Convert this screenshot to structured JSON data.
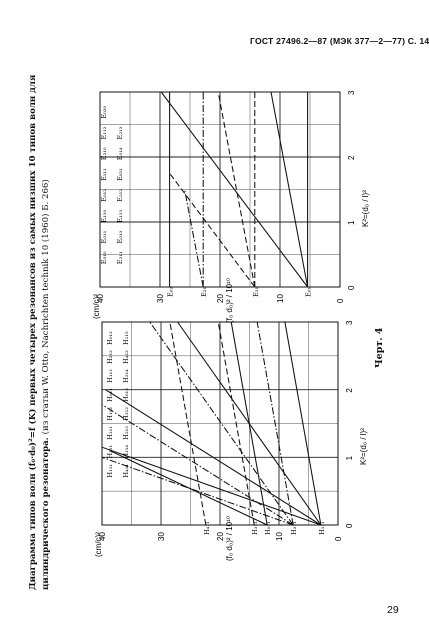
{
  "header": "ГОСТ 27496.2—87 (МЭК 377—2—77) С. 14",
  "page_number": "29",
  "caption": {
    "line1": "Диаграмма типов волн (f₀·d₀)²=f (K) первых четырех резонансов из самых низших 10 типов волн для",
    "line2": "цилиндрического резонатора.",
    "line2_note": "(из статьи W. Otto, Nachrichten technik 10 (1960) Б. 266)"
  },
  "figure_label": "Черт. 4",
  "axes": {
    "y_title": "(cm/c)²",
    "y_ticks": [
      "40",
      "30",
      "20",
      "10",
      "0"
    ],
    "y_quantity": "(f₀ d₀)² / 10¹⁰",
    "x_ticks": [
      "0",
      "1",
      "2",
      "3"
    ],
    "x_quantity": "K²=(d₀ / l)²"
  },
  "chart_data": [
    {
      "type": "line",
      "title": "",
      "xlabel": "K²=(d₀/l)²",
      "ylabel": "(f₀ d₀)²/10¹⁰ (cm/c)²",
      "xlim": [
        0,
        3
      ],
      "ylim": [
        0,
        40
      ],
      "series": [
        {
          "name": "H111",
          "style": "solid",
          "x": [
            0,
            3
          ],
          "y": [
            2.9,
            9.0
          ]
        },
        {
          "name": "H211",
          "style": "dashdot",
          "x": [
            0,
            3
          ],
          "y": [
            7.6,
            13.7
          ]
        },
        {
          "name": "H112",
          "style": "solid",
          "x": [
            0,
            3
          ],
          "y": [
            2.9,
            27.2
          ]
        },
        {
          "name": "H212",
          "style": "dashdot",
          "x": [
            0,
            3
          ],
          "y": [
            7.6,
            31.9
          ]
        },
        {
          "name": "H311",
          "style": "dashed",
          "x": [
            0,
            3
          ],
          "y": [
            14.2,
            20.3
          ]
        },
        {
          "name": "H011",
          "style": "solid",
          "x": [
            0,
            3
          ],
          "y": [
            12.0,
            18.1
          ]
        },
        {
          "name": "H113",
          "style": "solid",
          "x": [
            0,
            2.0
          ],
          "y": [
            2.9,
            39.4
          ]
        },
        {
          "name": "H012",
          "style": "solid",
          "x": [
            0,
            1.1
          ],
          "y": [
            12.0,
            38.7
          ]
        },
        {
          "name": "H213",
          "style": "dashdot",
          "x": [
            0,
            1.78
          ],
          "y": [
            7.6,
            40.0
          ]
        },
        {
          "name": "H411",
          "style": "dashed",
          "x": [
            0,
            3
          ],
          "y": [
            22.4,
            28.5
          ]
        },
        {
          "name": "H114",
          "style": "solid",
          "x": [
            0,
            1.15
          ],
          "y": [
            2.9,
            40.0
          ]
        },
        {
          "name": "H214",
          "style": "dashdot",
          "x": [
            0,
            1.0
          ],
          "y": [
            7.6,
            40.0
          ]
        },
        {
          "name": "E012",
          "style": "solid",
          "x": [
            0,
            3
          ],
          "y": [
            5.4,
            29.8
          ]
        },
        {
          "name": "E011",
          "style": "solid",
          "x": [
            0,
            3
          ],
          "y": [
            5.4,
            11.5
          ]
        },
        {
          "name": "E010",
          "style": "solid",
          "x": [
            0,
            3
          ],
          "y": [
            5.4,
            5.4
          ]
        },
        {
          "name": "E110",
          "style": "dashed",
          "x": [
            0,
            3
          ],
          "y": [
            14.2,
            14.2
          ]
        },
        {
          "name": "E111",
          "style": "dashed",
          "x": [
            0,
            3
          ],
          "y": [
            14.2,
            20.3
          ]
        },
        {
          "name": "E210",
          "style": "dashdot",
          "x": [
            0,
            3
          ],
          "y": [
            22.8,
            22.8
          ]
        },
        {
          "name": "E112",
          "style": "dashed",
          "x": [
            0,
            1.75
          ],
          "y": [
            14.2,
            28.4
          ]
        },
        {
          "name": "E211",
          "style": "dashdot",
          "x": [
            0,
            1.5
          ],
          "y": [
            22.8,
            25.9
          ]
        },
        {
          "name": "E020",
          "style": "solid",
          "x": [
            0,
            3
          ],
          "y": [
            28.4,
            28.4
          ]
        }
      ],
      "left_panel_labels": [
        "H₁₁₁",
        "H₂₁₁",
        "H₃₁₁",
        "H₁₁₂",
        "H₀₁₁",
        "H₁₁₃",
        "H₂₁₂",
        "H₀₁₂",
        "H₄₁₁",
        "H₁₁₄",
        "H₂₁₃",
        "H₃₁₂",
        "H₀₁₃",
        "H₂₁₄",
        "H₄₁₂",
        "H₁₁₅"
      ],
      "right_panel_labels": [
        "E₀₁₀",
        "E₀₁₁",
        "E₁₁₀",
        "E₀₁₂",
        "E₁₁₁",
        "E₂₁₀",
        "E₁₁₂",
        "E₀₂₀",
        "E₂₁₁",
        "E₀₁₃",
        "E₁₁₃",
        "E₂₁₂",
        "E₀₂₁",
        "E₀₁₄",
        "E₂₁₃"
      ],
      "start_labels": [
        "H₁₁₁",
        "H₂₁₁",
        "H₀₁₁",
        "H₃₁₁",
        "H₄₁₁",
        "E₀₁",
        "E₁₁",
        "E₂₁",
        "E₀₂"
      ]
    }
  ]
}
